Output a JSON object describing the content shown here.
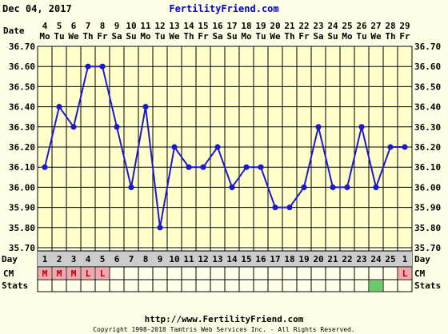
{
  "header": {
    "date": "Dec 04, 2017",
    "site": "FertilityFriend.com"
  },
  "labels": {
    "date_row": "Date",
    "day_row": "Day",
    "cm_row": "CM",
    "stats_row": "Stats"
  },
  "footer": {
    "url": "http://www.FertilityFriend.com",
    "copyright": "Copyright 1998-2018 Tamtris Web Services Inc. - All Rights Reserved."
  },
  "colors": {
    "background": "#ffffe8",
    "plot": "#ffffcc",
    "line": "#1a1acc",
    "grid": "#000000",
    "site": "#0000cc",
    "cm_fill": "#f4a6b0",
    "cm_text": "#b00000",
    "stats_mark": "#66cc66",
    "day_fill": "#cccccc"
  },
  "chart_data": {
    "type": "line",
    "title": "",
    "ylim": [
      35.7,
      36.7
    ],
    "yticks": [
      "35.70",
      "35.80",
      "35.90",
      "36.00",
      "36.10",
      "36.20",
      "36.30",
      "36.40",
      "36.50",
      "36.60",
      "36.70"
    ],
    "dates": [
      "4",
      "5",
      "6",
      "7",
      "8",
      "9",
      "10",
      "11",
      "12",
      "13",
      "14",
      "15",
      "16",
      "17",
      "18",
      "19",
      "20",
      "21",
      "22",
      "23",
      "24",
      "25",
      "26",
      "27",
      "28",
      "29"
    ],
    "weekdays": [
      "Mo",
      "Tu",
      "We",
      "Th",
      "Fr",
      "Sa",
      "Su",
      "Mo",
      "Tu",
      "We",
      "Th",
      "Fr",
      "Sa",
      "Su",
      "Mo",
      "Tu",
      "We",
      "Th",
      "Fr",
      "Sa",
      "Su",
      "Mo",
      "Tu",
      "We",
      "Th",
      "Fr"
    ],
    "cycle_days": [
      "1",
      "2",
      "3",
      "4",
      "5",
      "6",
      "7",
      "8",
      "9",
      "10",
      "11",
      "12",
      "13",
      "14",
      "15",
      "16",
      "17",
      "18",
      "19",
      "20",
      "21",
      "22",
      "23",
      "24",
      "25",
      "1"
    ],
    "series": [
      {
        "values": [
          36.1,
          36.4,
          36.3,
          36.6,
          36.6,
          36.3,
          36.0,
          36.4,
          35.8,
          36.2,
          36.1,
          36.1,
          36.2,
          36.0,
          36.1,
          36.1,
          35.9,
          35.9,
          36.0,
          36.3,
          36.0,
          36.0,
          36.3,
          36.0,
          36.2,
          36.2
        ]
      }
    ],
    "cm": [
      "M",
      "M",
      "M",
      "L",
      "L",
      "",
      "",
      "",
      "",
      "",
      "",
      "",
      "",
      "",
      "",
      "",
      "",
      "",
      "",
      "",
      "",
      "",
      "",
      "",
      "",
      "L"
    ],
    "stats_marked": [
      false,
      false,
      false,
      false,
      false,
      false,
      false,
      false,
      false,
      false,
      false,
      false,
      false,
      false,
      false,
      false,
      false,
      false,
      false,
      false,
      false,
      false,
      false,
      true,
      false,
      false
    ]
  }
}
